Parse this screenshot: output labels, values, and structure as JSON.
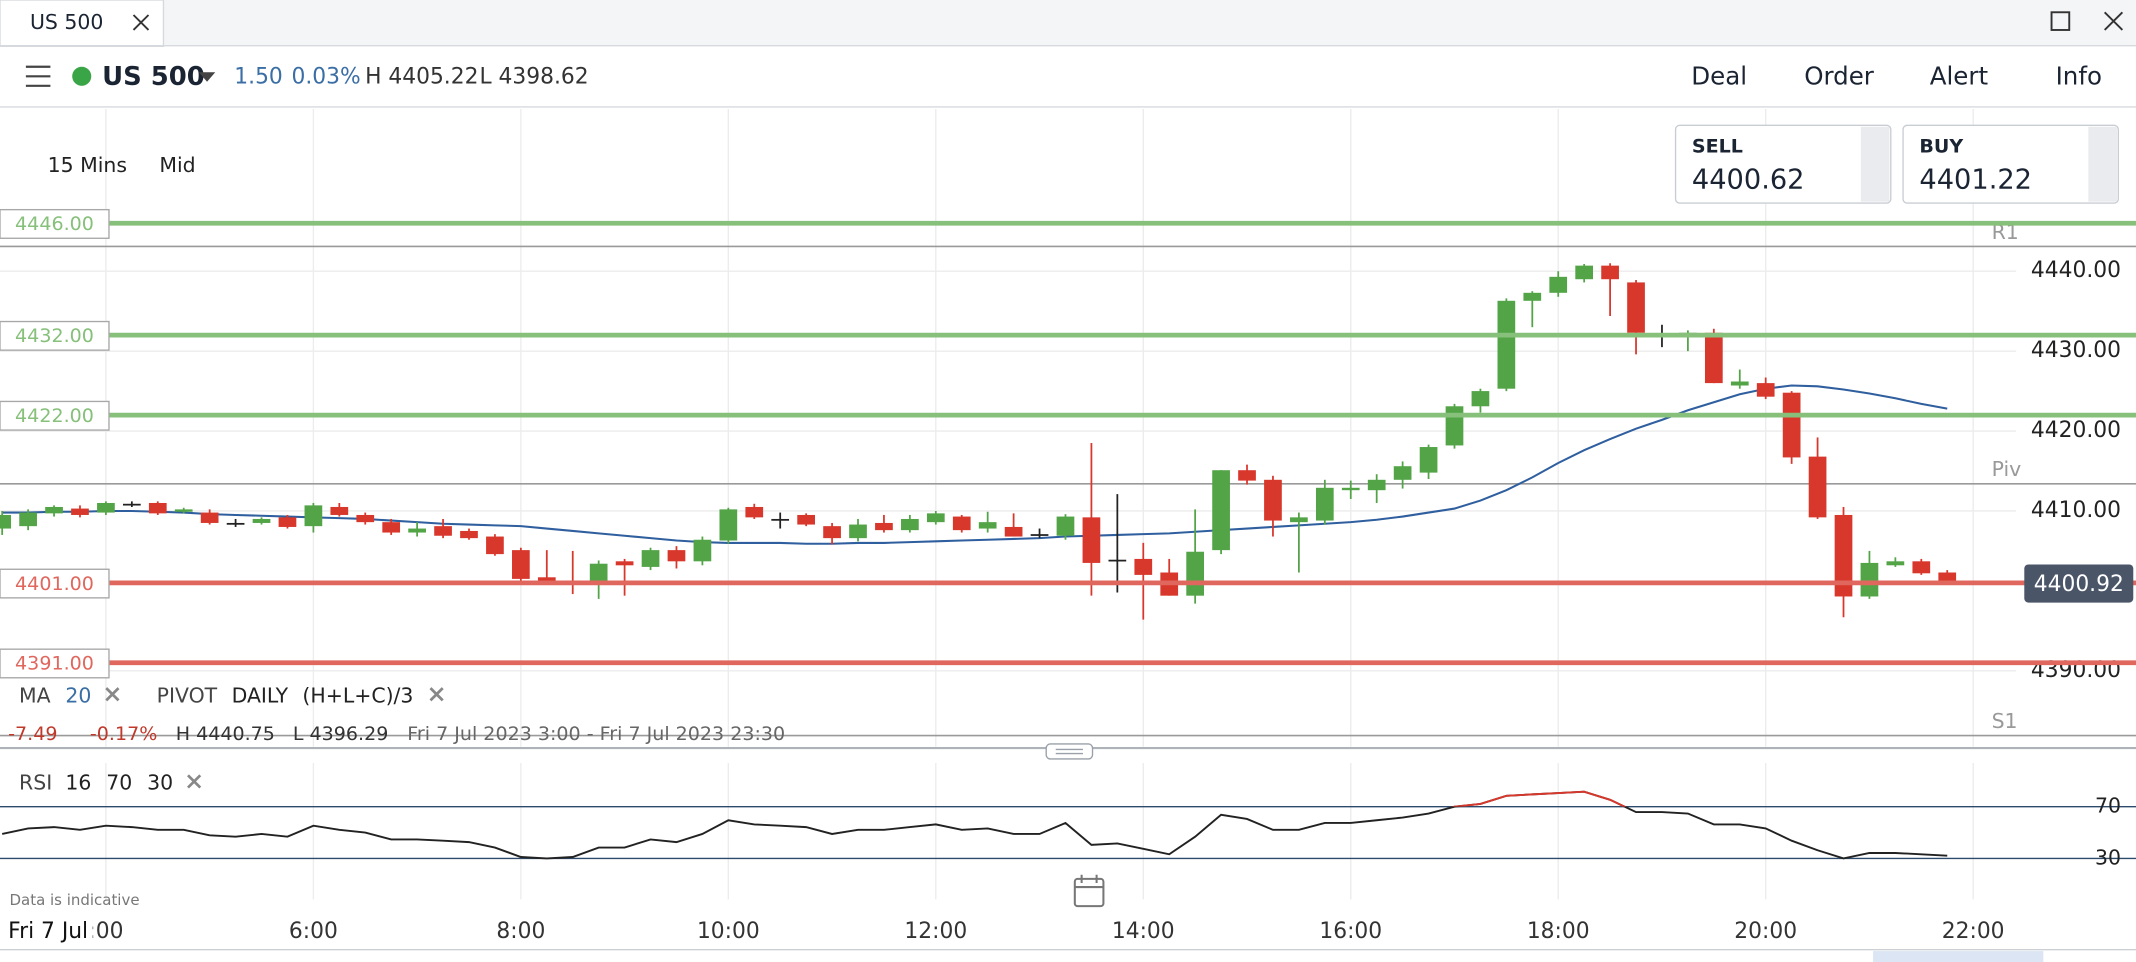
{
  "header": {
    "tab": "US 500"
  },
  "toolbar": {
    "instrument": "US 500",
    "change": "1.50",
    "change_pct": "0.03%",
    "high": "H 4405.22",
    "low": "L 4398.62",
    "menu": [
      "Deal",
      "Order",
      "Alert",
      "Info"
    ]
  },
  "chart_controls": {
    "interval": "15 Mins",
    "price_type": "Mid"
  },
  "quotes": {
    "sell_label": "SELL",
    "sell": "4400.62",
    "buy_label": "BUY",
    "buy": "4401.22"
  },
  "indicators": {
    "ma_label": "MA",
    "ma_period": "20",
    "pivot_label": "PIVOT",
    "pivot_period": "DAILY",
    "pivot_formula": "(H+L+C)/3"
  },
  "summary": {
    "change": "-7.49",
    "change_pct": "-0.17%",
    "high": "H 4440.75",
    "low": "L 4396.29",
    "range": "Fri 7 Jul 2023 3:00 - Fri 7 Jul 2023 23:30"
  },
  "footer": {
    "note": "Data is indicative",
    "date": "Fri 7 Jul"
  },
  "chart_data": {
    "type": "candlestick",
    "x": [
      3,
      3.25,
      3.5,
      3.75,
      4,
      4.25,
      4.5,
      4.75,
      5,
      5.25,
      5.5,
      5.75,
      6,
      6.25,
      6.5,
      6.75,
      7,
      7.25,
      7.5,
      7.75,
      8,
      8.25,
      8.5,
      8.75,
      9,
      9.25,
      9.5,
      9.75,
      10,
      10.25,
      10.5,
      10.75,
      11,
      11.25,
      11.5,
      11.75,
      12,
      12.25,
      12.5,
      12.75,
      13,
      13.25,
      13.5,
      13.75,
      14,
      14.25,
      14.5,
      14.75,
      15,
      15.25,
      15.5,
      15.75,
      16,
      16.25,
      16.5,
      16.75,
      17,
      17.25,
      17.5,
      17.75,
      18,
      18.25,
      18.5,
      18.75,
      19,
      19.25,
      19.5,
      19.75,
      20,
      20.25,
      20.5,
      20.75,
      21,
      21.25,
      21.5,
      21.75
    ],
    "open": [
      4407.8,
      4408.1,
      4409.7,
      4410.3,
      4409.8,
      4410.9,
      4411.0,
      4409.9,
      4409.8,
      4408.5,
      4408.5,
      4409.2,
      4408.1,
      4410.5,
      4409.5,
      4408.6,
      4407.3,
      4408.1,
      4407.5,
      4406.8,
      4405.1,
      4401.7,
      4401.3,
      4401.0,
      4403.7,
      4403.0,
      4405.1,
      4403.7,
      4406.3,
      4410.5,
      4409.0,
      4409.5,
      4408.1,
      4406.6,
      4408.5,
      4407.6,
      4408.6,
      4409.3,
      4407.8,
      4408.0,
      4407.1,
      4406.9,
      4409.2,
      4403.9,
      4404.0,
      4402.3,
      4399.4,
      4405.1,
      4415.1,
      4413.9,
      4408.6,
      4408.8,
      4412.6,
      4412.6,
      4413.9,
      4414.8,
      4418.2,
      4423.1,
      4425.3,
      4436.3,
      4437.3,
      4439.0,
      4440.7,
      4438.6,
      4432.2,
      4432.0,
      4432.3,
      4425.7,
      4426.0,
      4424.8,
      4416.8,
      4409.5,
      4399.3,
      4403.2,
      4403.7,
      4402.3
    ],
    "high": [
      4410.0,
      4410.2,
      4410.7,
      4410.7,
      4411.2,
      4411.2,
      4411.2,
      4410.4,
      4410.2,
      4409.0,
      4409.2,
      4409.5,
      4411.0,
      4411.0,
      4409.8,
      4409.0,
      4408.6,
      4409.0,
      4407.8,
      4407.1,
      4405.4,
      4405.1,
      4405.0,
      4403.8,
      4404.0,
      4405.4,
      4405.6,
      4406.8,
      4410.4,
      4410.9,
      4409.8,
      4409.7,
      4408.5,
      4409.0,
      4409.5,
      4409.5,
      4410.0,
      4409.5,
      4409.9,
      4409.7,
      4407.8,
      4409.6,
      4418.5,
      4412.1,
      4406.0,
      4404.0,
      4410.2,
      4415.1,
      4415.8,
      4414.4,
      4409.8,
      4413.9,
      4413.8,
      4414.6,
      4416.2,
      4418.3,
      4423.4,
      4425.3,
      4436.6,
      4437.5,
      4440.0,
      4440.9,
      4441.0,
      4438.9,
      4433.3,
      4432.6,
      4432.8,
      4427.7,
      4426.7,
      4425.0,
      4419.2,
      4410.5,
      4405.0,
      4404.2,
      4404.0,
      4402.6
    ],
    "low": [
      4407.0,
      4407.6,
      4409.3,
      4409.2,
      4409.5,
      4410.5,
      4409.5,
      4409.7,
      4408.3,
      4408.0,
      4408.3,
      4407.8,
      4407.3,
      4409.3,
      4408.3,
      4407.0,
      4406.8,
      4406.6,
      4406.4,
      4404.4,
      4401.3,
      4401.0,
      4399.6,
      4399.0,
      4399.4,
      4402.6,
      4402.8,
      4403.2,
      4405.9,
      4409.0,
      4407.8,
      4408.1,
      4405.8,
      4406.2,
      4407.3,
      4407.3,
      4408.3,
      4407.3,
      4407.3,
      4406.8,
      4406.6,
      4406.4,
      4399.4,
      4399.8,
      4396.4,
      4399.4,
      4398.4,
      4404.6,
      4413.3,
      4406.8,
      4402.3,
      4408.3,
      4411.5,
      4411.0,
      4412.8,
      4414.0,
      4417.8,
      4422.3,
      4425.0,
      4433.0,
      4436.8,
      4438.6,
      4434.4,
      4429.6,
      4430.5,
      4430.0,
      4426.0,
      4425.3,
      4424.0,
      4415.9,
      4409.0,
      4396.7,
      4399.0,
      4403.0,
      4402.0,
      4400.9
    ],
    "close": [
      4409.5,
      4409.8,
      4410.5,
      4409.5,
      4411.0,
      4410.9,
      4409.7,
      4410.2,
      4408.5,
      4408.5,
      4409.0,
      4408.0,
      4410.7,
      4409.5,
      4408.6,
      4407.3,
      4407.8,
      4406.9,
      4406.6,
      4404.6,
      4401.5,
      4401.0,
      4401.2,
      4403.4,
      4403.2,
      4405.1,
      4403.7,
      4406.4,
      4410.2,
      4409.2,
      4409.0,
      4408.3,
      4406.6,
      4408.3,
      4407.6,
      4409.0,
      4409.7,
      4407.6,
      4408.6,
      4406.8,
      4407.1,
      4409.3,
      4403.5,
      4403.9,
      4402.0,
      4399.4,
      4404.9,
      4415.1,
      4413.8,
      4408.8,
      4409.2,
      4412.9,
      4412.9,
      4413.9,
      4415.6,
      4418.0,
      4423.1,
      4425.0,
      4436.3,
      4437.3,
      4439.3,
      4440.7,
      4439.0,
      4432.3,
      4432.2,
      4432.3,
      4426.0,
      4426.2,
      4424.3,
      4416.7,
      4409.2,
      4399.3,
      4403.5,
      4403.7,
      4402.2,
      4400.92
    ],
    "up_color": "#52a447",
    "down_color": "#d8372c",
    "flat_color": "#222222",
    "ma": {
      "color": "#2f5f9e",
      "values": [
        4409.8,
        4409.8,
        4409.9,
        4409.9,
        4410.0,
        4410.0,
        4409.9,
        4409.8,
        4409.6,
        4409.5,
        4409.4,
        4409.3,
        4409.2,
        4409.1,
        4409.0,
        4408.8,
        4408.6,
        4408.4,
        4408.3,
        4408.2,
        4408.1,
        4407.8,
        4407.5,
        4407.2,
        4406.9,
        4406.6,
        4406.3,
        4406.1,
        4406.0,
        4406.0,
        4406.0,
        4405.9,
        4405.9,
        4406.0,
        4406.0,
        4406.1,
        4406.2,
        4406.3,
        4406.4,
        4406.5,
        4406.6,
        4406.8,
        4406.9,
        4407.0,
        4407.1,
        4407.2,
        4407.4,
        4407.6,
        4407.8,
        4408.0,
        4408.2,
        4408.4,
        4408.6,
        4408.9,
        4409.3,
        4409.8,
        4410.3,
        4411.3,
        4412.6,
        4414.2,
        4416.0,
        4417.6,
        4419.0,
        4420.3,
        4421.4,
        4422.6,
        4423.6,
        4424.6,
        4425.3,
        4425.7,
        4425.6,
        4425.2,
        4424.7,
        4424.1,
        4423.4,
        4422.8
      ]
    },
    "levels": [
      {
        "value": 4446,
        "label": "4446.00",
        "color": "#86c07a"
      },
      {
        "value": 4432,
        "label": "4432.00",
        "color": "#86c07a"
      },
      {
        "value": 4422,
        "label": "4422.00",
        "color": "#86c07a"
      },
      {
        "value": 4401,
        "label": "4401.00",
        "color": "#e0675d"
      },
      {
        "value": 4391,
        "label": "4391.00",
        "color": "#e0675d"
      }
    ],
    "pivots": [
      {
        "name": "R1",
        "value": 4443.1
      },
      {
        "name": "Piv",
        "value": 4413.4
      },
      {
        "name": "S1",
        "value": 4381.9
      }
    ],
    "last_price": 4400.92,
    "xlim": [
      3,
      23.5
    ],
    "xticks": [
      {
        "value": 4,
        "label": ":00"
      },
      {
        "value": 6,
        "label": "6:00"
      },
      {
        "value": 8,
        "label": "8:00"
      },
      {
        "value": 10,
        "label": "10:00"
      },
      {
        "value": 12,
        "label": "12:00"
      },
      {
        "value": 14,
        "label": "14:00"
      },
      {
        "value": 16,
        "label": "16:00"
      },
      {
        "value": 18,
        "label": "18:00"
      },
      {
        "value": 20,
        "label": "20:00"
      },
      {
        "value": 22,
        "label": "22:00"
      }
    ],
    "ylim": [
      4380.5,
      4460.3
    ],
    "yticks": [
      {
        "value": 4390,
        "label": "4390.00"
      },
      {
        "value": 4410,
        "label": "4410.00"
      },
      {
        "value": 4420,
        "label": "4420.00"
      },
      {
        "value": 4430,
        "label": "4430.00"
      },
      {
        "value": 4440,
        "label": "4440.00"
      }
    ],
    "grid": true,
    "rsi": {
      "name": "RSI",
      "period": 16,
      "upper": 70,
      "lower": 30,
      "color": "#222222",
      "overbought_color": "#d8372c",
      "ylim": [
        -1.6,
        103.7
      ],
      "yticks": [
        30,
        70
      ],
      "values": [
        48.9,
        53.2,
        54.2,
        52.1,
        55.3,
        54.2,
        52.1,
        52.1,
        47.9,
        46.8,
        48.9,
        46.8,
        55.3,
        52.1,
        50.0,
        44.7,
        44.7,
        43.7,
        42.6,
        38.4,
        31.1,
        30.0,
        31.1,
        38.4,
        38.4,
        44.7,
        42.6,
        48.9,
        59.5,
        56.3,
        55.3,
        54.2,
        48.9,
        52.1,
        52.1,
        54.2,
        56.3,
        52.1,
        53.2,
        48.9,
        48.9,
        57.4,
        40.5,
        41.6,
        37.4,
        33.2,
        46.8,
        63.7,
        60.5,
        52.1,
        52.1,
        57.4,
        57.4,
        59.5,
        61.6,
        64.7,
        70.0,
        72.1,
        78.4,
        79.5,
        80.5,
        81.6,
        75.3,
        65.8,
        65.8,
        64.7,
        56.3,
        56.3,
        53.2,
        43.7,
        36.3,
        30.0,
        34.2,
        34.2,
        33.2,
        32.1
      ]
    }
  }
}
